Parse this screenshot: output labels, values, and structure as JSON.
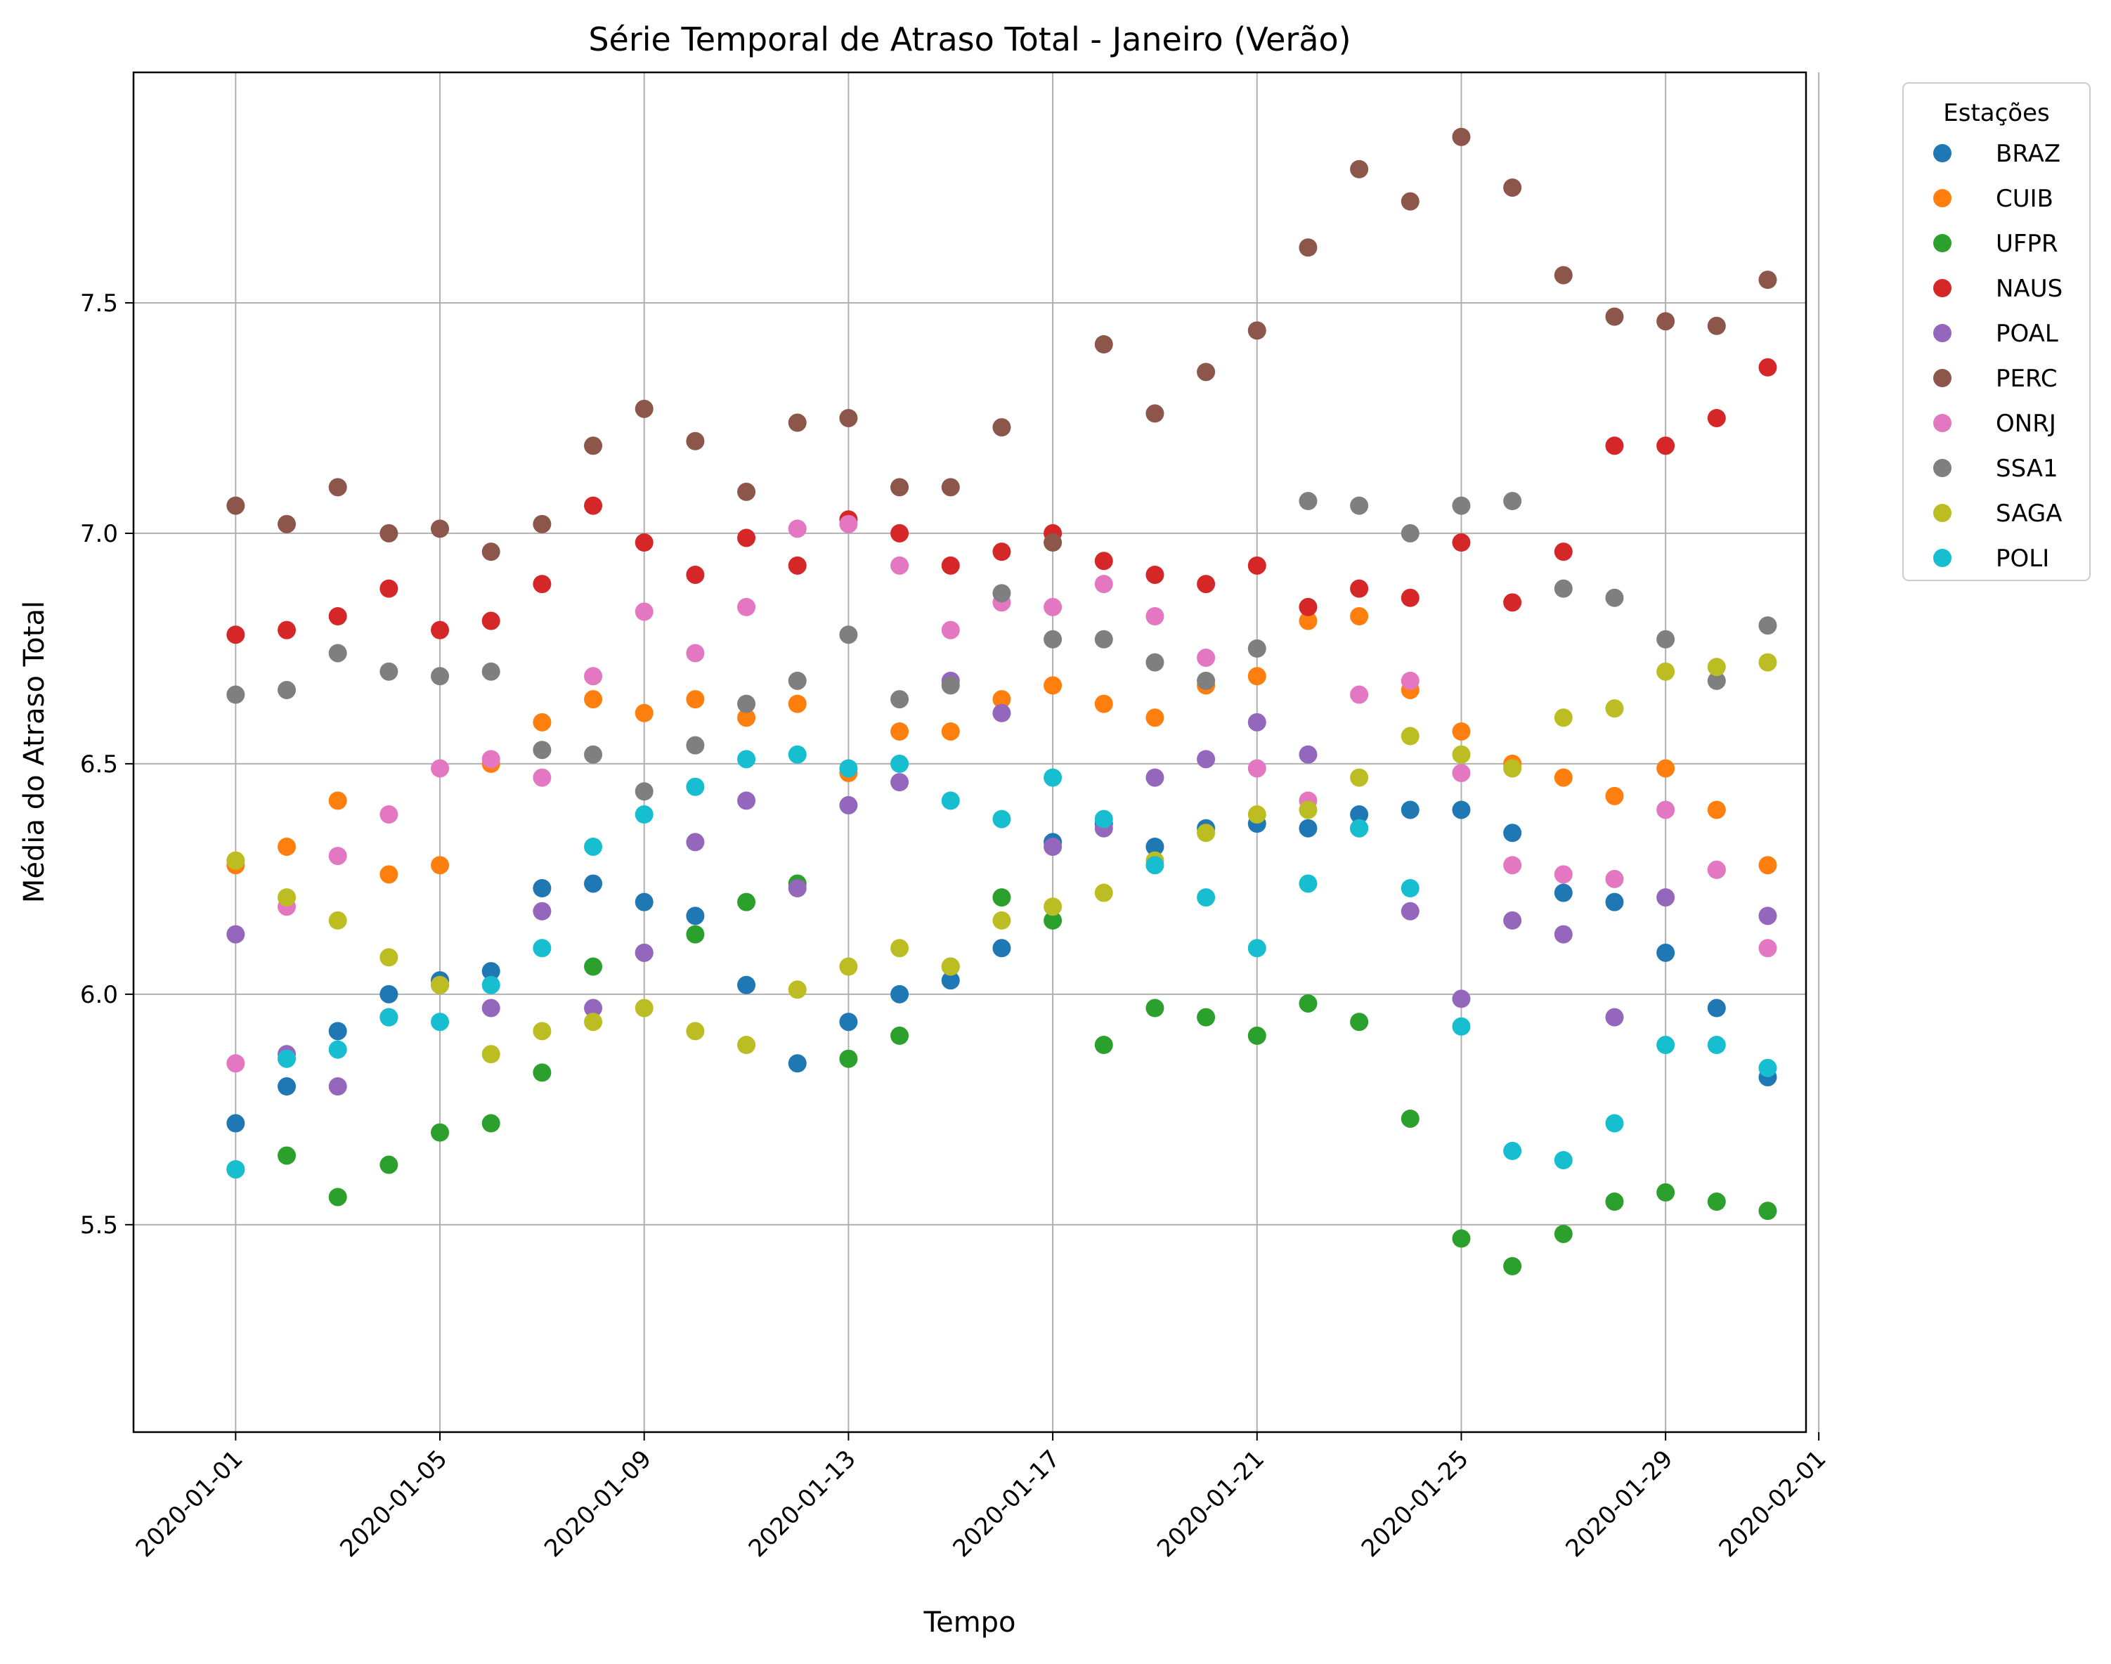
{
  "chart_data": {
    "type": "scatter",
    "title": "Série Temporal de Atraso Total - Janeiro (Verão)",
    "xlabel": "Tempo",
    "ylabel": "Média do Atraso Total",
    "x_ticks": [
      "2020-01-01",
      "2020-01-05",
      "2020-01-09",
      "2020-01-13",
      "2020-01-17",
      "2020-01-21",
      "2020-01-25",
      "2020-01-29",
      "2020-02-01"
    ],
    "y_ticks": [
      "5.5",
      "6.0",
      "6.5",
      "7.0",
      "7.5"
    ],
    "xlim": [
      "2019-12-30",
      "2020-02-01"
    ],
    "ylim": [
      5.05,
      8.0
    ],
    "grid": true,
    "legend": {
      "title": "Estações",
      "placement": "outside-top-right"
    },
    "x": [
      "2020-01-01",
      "2020-01-02",
      "2020-01-03",
      "2020-01-04",
      "2020-01-05",
      "2020-01-06",
      "2020-01-07",
      "2020-01-08",
      "2020-01-09",
      "2020-01-10",
      "2020-01-11",
      "2020-01-12",
      "2020-01-13",
      "2020-01-14",
      "2020-01-15",
      "2020-01-16",
      "2020-01-17",
      "2020-01-18",
      "2020-01-19",
      "2020-01-20",
      "2020-01-21",
      "2020-01-22",
      "2020-01-23",
      "2020-01-24",
      "2020-01-25",
      "2020-01-26",
      "2020-01-27",
      "2020-01-28",
      "2020-01-29",
      "2020-01-30",
      "2020-01-31"
    ],
    "series": [
      {
        "name": "BRAZ",
        "color": "#1f77b4",
        "values": [
          5.72,
          5.8,
          5.92,
          6.0,
          6.03,
          6.05,
          6.23,
          6.24,
          6.2,
          6.17,
          6.02,
          5.85,
          5.94,
          6.0,
          6.03,
          6.1,
          6.33,
          6.37,
          6.32,
          6.36,
          6.37,
          6.36,
          6.39,
          6.4,
          6.4,
          6.35,
          6.22,
          6.2,
          6.09,
          5.97,
          5.82
        ]
      },
      {
        "name": "CUIB",
        "color": "#ff7f0e",
        "values": [
          6.28,
          6.32,
          6.42,
          6.26,
          6.28,
          6.5,
          6.59,
          6.64,
          6.61,
          6.64,
          6.6,
          6.63,
          6.48,
          6.57,
          6.57,
          6.64,
          6.67,
          6.63,
          6.6,
          6.67,
          6.69,
          6.81,
          6.82,
          6.66,
          6.57,
          6.5,
          6.47,
          6.43,
          6.49,
          6.4,
          6.28
        ]
      },
      {
        "name": "UFPR",
        "color": "#2ca02c",
        "values": [
          5.62,
          5.65,
          5.56,
          5.63,
          5.7,
          5.72,
          5.83,
          6.06,
          6.09,
          6.13,
          6.2,
          6.24,
          5.86,
          5.91,
          6.06,
          6.21,
          6.16,
          5.89,
          5.97,
          5.95,
          5.91,
          5.98,
          5.94,
          5.73,
          5.47,
          5.41,
          5.48,
          5.55,
          5.57,
          5.55,
          5.53
        ]
      },
      {
        "name": "NAUS",
        "color": "#d62728",
        "values": [
          6.78,
          6.79,
          6.82,
          6.88,
          6.79,
          6.81,
          6.89,
          7.06,
          6.98,
          6.91,
          6.99,
          6.93,
          7.03,
          7.0,
          6.93,
          6.96,
          7.0,
          6.94,
          6.91,
          6.89,
          6.93,
          6.84,
          6.88,
          6.86,
          6.98,
          6.85,
          6.96,
          7.19,
          7.19,
          7.25,
          7.36
        ]
      },
      {
        "name": "POAL",
        "color": "#9467bd",
        "values": [
          6.13,
          5.87,
          5.8,
          5.95,
          6.02,
          5.97,
          6.18,
          5.97,
          6.09,
          6.33,
          6.42,
          6.23,
          6.41,
          6.46,
          6.68,
          6.61,
          6.32,
          6.36,
          6.47,
          6.51,
          6.59,
          6.52,
          6.36,
          6.18,
          5.99,
          6.16,
          6.13,
          5.95,
          6.21,
          6.27,
          6.17
        ]
      },
      {
        "name": "PERC",
        "color": "#8c564b",
        "values": [
          7.06,
          7.02,
          7.1,
          7.0,
          7.01,
          6.96,
          7.02,
          7.19,
          7.27,
          7.2,
          7.09,
          7.24,
          7.25,
          7.1,
          7.1,
          7.23,
          6.98,
          7.41,
          7.26,
          7.35,
          7.44,
          7.62,
          7.79,
          7.72,
          7.86,
          7.75,
          7.56,
          7.47,
          7.46,
          7.45,
          7.55
        ]
      },
      {
        "name": "ONRJ",
        "color": "#e377c2",
        "values": [
          5.85,
          6.19,
          6.3,
          6.39,
          6.49,
          6.51,
          6.47,
          6.69,
          6.83,
          6.74,
          6.84,
          7.01,
          7.02,
          6.93,
          6.79,
          6.85,
          6.84,
          6.89,
          6.82,
          6.73,
          6.49,
          6.42,
          6.65,
          6.68,
          6.48,
          6.28,
          6.26,
          6.25,
          6.4,
          6.27,
          6.1
        ]
      },
      {
        "name": "SSA1",
        "color": "#7f7f7f",
        "values": [
          6.65,
          6.66,
          6.74,
          6.7,
          6.69,
          6.7,
          6.53,
          6.52,
          6.44,
          6.54,
          6.63,
          6.68,
          6.78,
          6.64,
          6.67,
          6.87,
          6.77,
          6.77,
          6.72,
          6.68,
          6.75,
          7.07,
          7.06,
          7.0,
          7.06,
          7.07,
          6.88,
          6.86,
          6.77,
          6.68,
          6.8
        ]
      },
      {
        "name": "SAGA",
        "color": "#bcbd22",
        "values": [
          6.29,
          6.21,
          6.16,
          6.08,
          6.02,
          5.87,
          5.92,
          5.94,
          5.97,
          5.92,
          5.89,
          6.01,
          6.06,
          6.1,
          6.06,
          6.16,
          6.19,
          6.22,
          6.29,
          6.35,
          6.39,
          6.4,
          6.47,
          6.56,
          6.52,
          6.49,
          6.6,
          6.62,
          6.7,
          6.71,
          6.72
        ]
      },
      {
        "name": "POLI",
        "color": "#17becf",
        "values": [
          5.62,
          5.86,
          5.88,
          5.95,
          5.94,
          6.02,
          6.1,
          6.32,
          6.39,
          6.45,
          6.51,
          6.52,
          6.49,
          6.5,
          6.42,
          6.38,
          6.47,
          6.38,
          6.28,
          6.21,
          6.1,
          6.24,
          6.36,
          6.23,
          5.93,
          5.66,
          5.64,
          5.72,
          5.89,
          5.89,
          5.84
        ]
      }
    ]
  }
}
